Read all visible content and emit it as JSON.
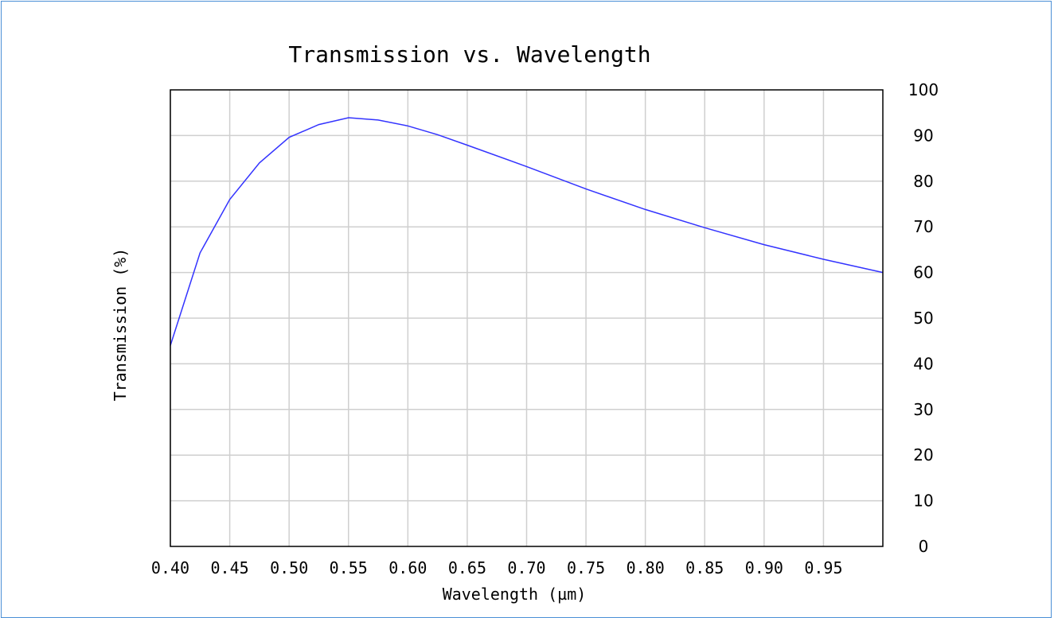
{
  "chart_data": {
    "type": "line",
    "title": "Transmission vs. Wavelength",
    "xlabel": "Wavelength  (µm)",
    "ylabel": "Transmission  (%)",
    "xlim": [
      0.4,
      1.0
    ],
    "ylim": [
      0,
      100
    ],
    "x_ticks": [
      "0.40",
      "0.45",
      "0.50",
      "0.55",
      "0.60",
      "0.65",
      "0.70",
      "0.75",
      "0.80",
      "0.85",
      "0.90",
      "0.95"
    ],
    "y_ticks": [
      "0",
      "10",
      "20",
      "30",
      "40",
      "50",
      "60",
      "70",
      "80",
      "90",
      "100"
    ],
    "y_axis_side": "right",
    "grid": true,
    "series": [
      {
        "color": "#3333ff",
        "x": [
          0.4,
          0.425,
          0.45,
          0.475,
          0.5,
          0.525,
          0.55,
          0.575,
          0.6,
          0.625,
          0.65,
          0.7,
          0.75,
          0.8,
          0.85,
          0.9,
          0.95,
          1.0
        ],
        "y": [
          44.0,
          64.3,
          76.0,
          84.0,
          89.6,
          92.4,
          93.9,
          93.4,
          92.1,
          90.2,
          87.9,
          83.2,
          78.3,
          73.8,
          69.8,
          66.1,
          62.9,
          60.0
        ]
      }
    ]
  }
}
